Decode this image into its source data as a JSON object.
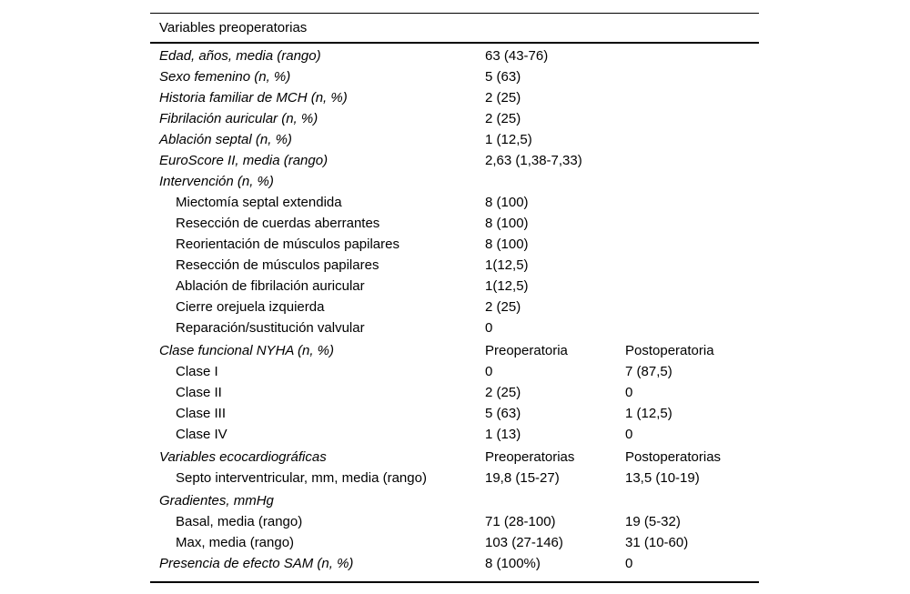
{
  "table": {
    "title": "Variables preoperatorias",
    "text_color": "#000000",
    "rule_color": "#000000",
    "rows": [
      {
        "label": "Edad, años, media (rango)",
        "level": "group",
        "values": [
          "63 (43-76)",
          ""
        ]
      },
      {
        "label": "Sexo femenino (n, %)",
        "level": "group",
        "values": [
          "5 (63)",
          ""
        ]
      },
      {
        "label": "Historia familiar de MCH (n, %)",
        "level": "group",
        "values": [
          "2 (25)",
          ""
        ]
      },
      {
        "label": "Fibrilación auricular (n, %)",
        "level": "group",
        "values": [
          "2 (25)",
          ""
        ]
      },
      {
        "label": "Ablación septal (n, %)",
        "level": "group",
        "values": [
          "1 (12,5)",
          ""
        ]
      },
      {
        "label": "EuroScore II, media (rango)",
        "level": "group",
        "values": [
          "2,63 (1,38-7,33)",
          ""
        ]
      },
      {
        "label": "Intervención (n, %)",
        "level": "group",
        "values": [
          "",
          ""
        ]
      },
      {
        "label": "Miectomía septal extendida",
        "level": "sub",
        "values": [
          "8 (100)",
          ""
        ]
      },
      {
        "label": "Resección de cuerdas aberrantes",
        "level": "sub",
        "values": [
          "8 (100)",
          ""
        ]
      },
      {
        "label": "Reorientación de músculos papilares",
        "level": "sub",
        "values": [
          "8 (100)",
          ""
        ]
      },
      {
        "label": "Resección de músculos papilares",
        "level": "sub",
        "values": [
          "1(12,5)",
          ""
        ]
      },
      {
        "label": "Ablación de fibrilación auricular",
        "level": "sub",
        "values": [
          "1(12,5)",
          ""
        ]
      },
      {
        "label": "Cierre orejuela izquierda",
        "level": "sub",
        "values": [
          "2 (25)",
          ""
        ]
      },
      {
        "label": "Reparación/sustitución valvular",
        "level": "sub",
        "values": [
          "0",
          ""
        ]
      },
      {
        "label": "Clase funcional NYHA (n, %)",
        "level": "group",
        "values": [
          "Preoperatoria",
          "Postoperatoria"
        ]
      },
      {
        "label": "Clase I",
        "level": "sub",
        "values": [
          "0",
          "7 (87,5)"
        ]
      },
      {
        "label": "Clase II",
        "level": "sub",
        "values": [
          "2 (25)",
          "0"
        ]
      },
      {
        "label": "Clase III",
        "level": "sub",
        "values": [
          "5 (63)",
          "1 (12,5)"
        ]
      },
      {
        "label": "Clase IV",
        "level": "sub",
        "values": [
          "1 (13)",
          "0"
        ]
      },
      {
        "label": "Variables ecocardiográficas",
        "level": "group",
        "values": [
          "Preoperatorias",
          "Postoperatorias"
        ]
      },
      {
        "label": "Septo interventricular, mm, media (rango)",
        "level": "sub",
        "values": [
          "19,8 (15-27)",
          "13,5 (10-19)"
        ]
      },
      {
        "label": "Gradientes, mmHg",
        "level": "group",
        "values": [
          "",
          ""
        ]
      },
      {
        "label": "Basal, media (rango)",
        "level": "sub",
        "values": [
          "71 (28-100)",
          "19 (5-32)"
        ]
      },
      {
        "label": "Max, media (rango)",
        "level": "sub",
        "values": [
          "103 (27-146)",
          "31 (10-60)"
        ]
      },
      {
        "label": "Presencia de efecto SAM (n, %)",
        "level": "group",
        "values": [
          "8 (100%)",
          "0"
        ]
      }
    ]
  }
}
